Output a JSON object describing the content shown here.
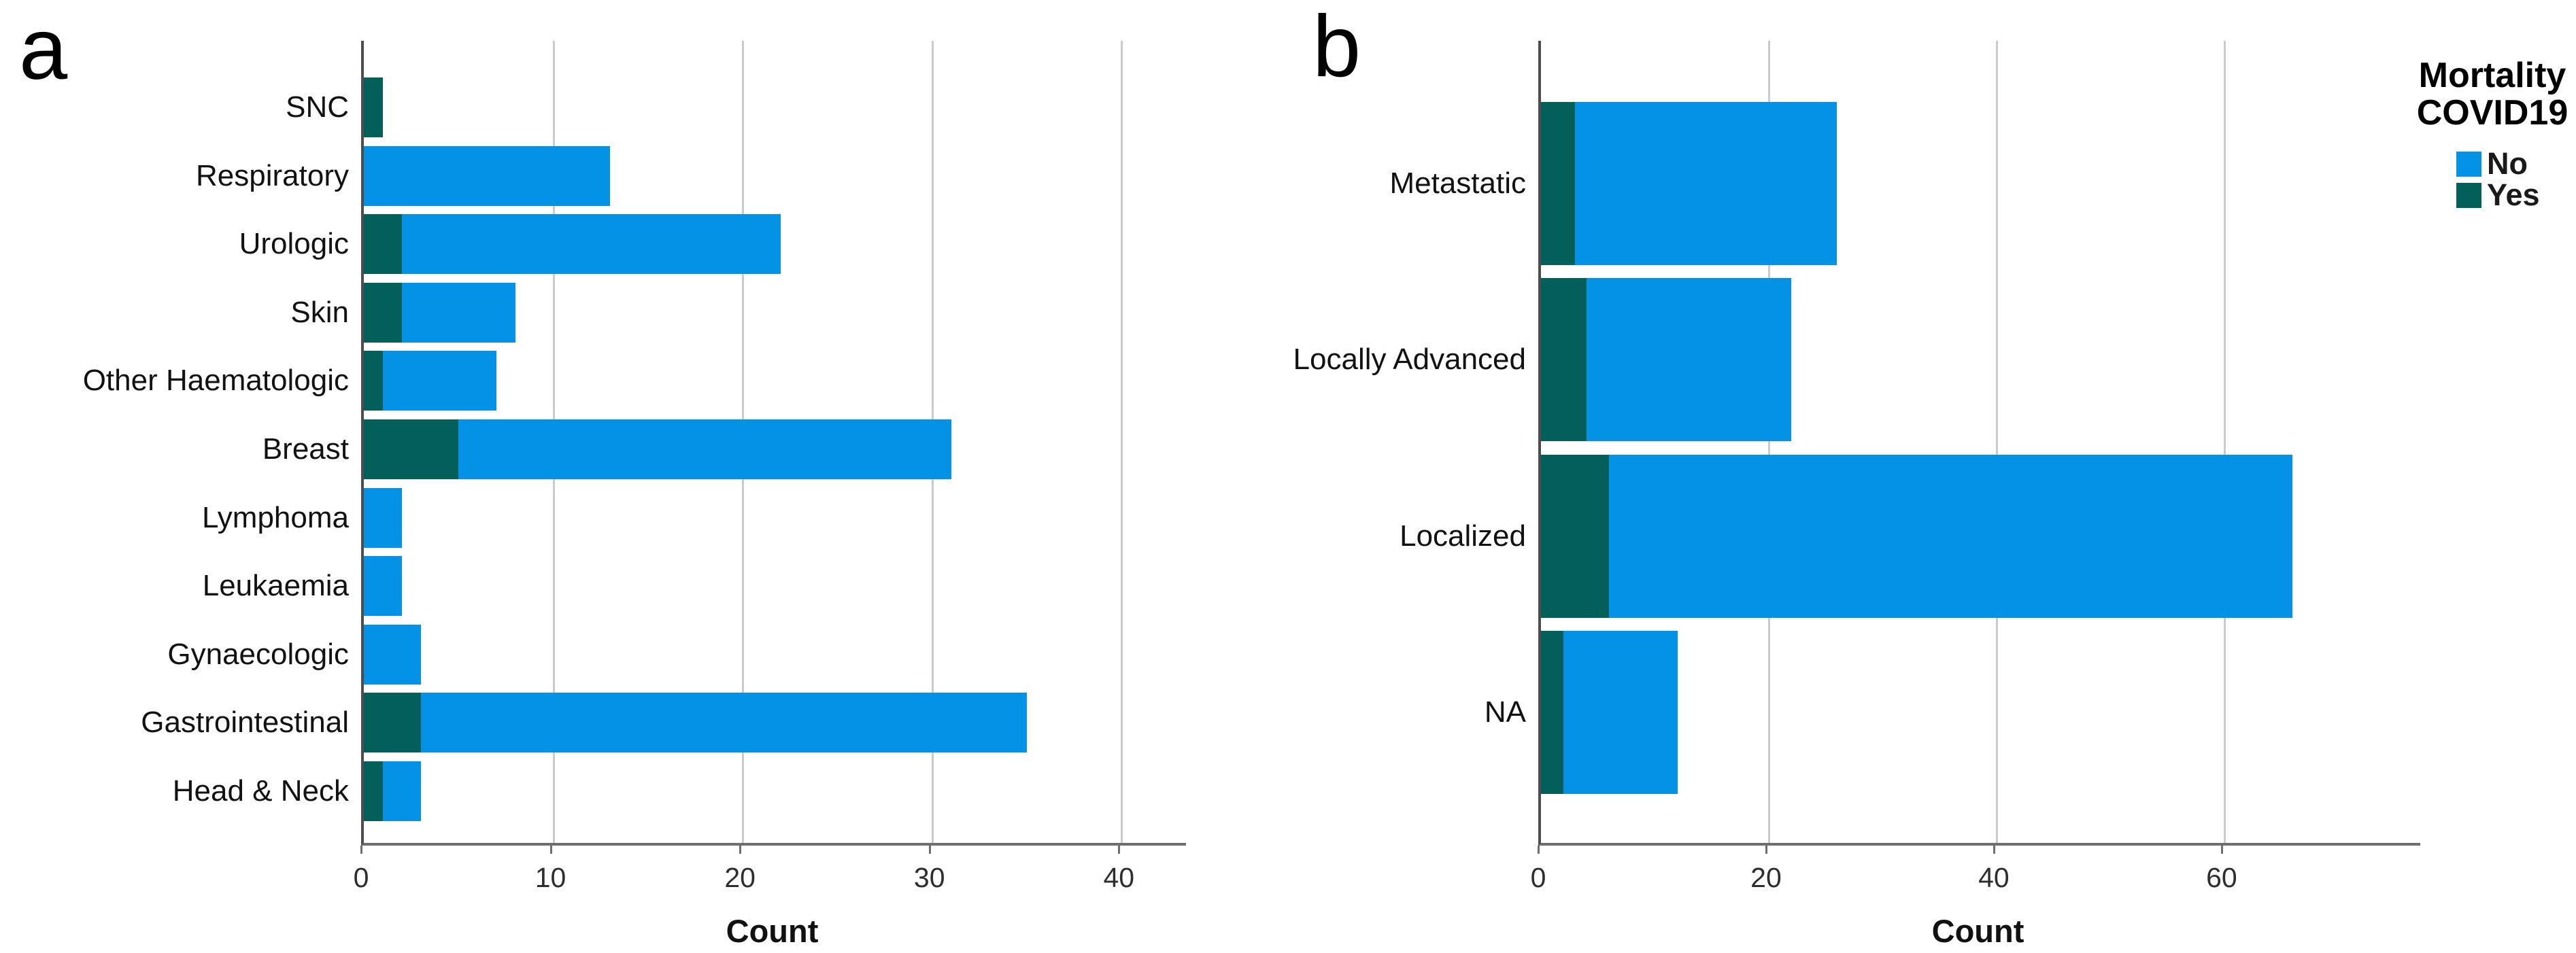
{
  "panels": [
    {
      "label": "a"
    },
    {
      "label": "b"
    }
  ],
  "legend": {
    "title_lines": [
      "Mortality",
      "COVID19"
    ],
    "items": [
      {
        "label": "No",
        "color": "#0392E6"
      },
      {
        "label": "Yes",
        "color": "#025F59"
      }
    ]
  },
  "colors": {
    "no_blue": "#0392E6",
    "yes_teal": "#025F59",
    "gridline": "#cbcbcb",
    "axis": "#6e6e6e",
    "text": "#121212"
  },
  "chart_data": [
    {
      "type": "bar",
      "orientation": "horizontal",
      "stacked": true,
      "panel": "a",
      "title": "",
      "categories": [
        "SNC",
        "Respiratory",
        "Urologic",
        "Skin",
        "Other Haematologic",
        "Breast",
        "Lymphoma",
        "Leukaemia",
        "Gynaecologic",
        "Gastrointestinal",
        "Head & Neck"
      ],
      "series": [
        {
          "name": "Yes",
          "color": "#025F59",
          "values": [
            1,
            0,
            2,
            2,
            1,
            5,
            0,
            0,
            0,
            3,
            1
          ]
        },
        {
          "name": "No",
          "color": "#0392E6",
          "values": [
            0,
            13,
            20,
            6,
            6,
            26,
            2,
            2,
            3,
            32,
            2
          ]
        }
      ],
      "totals": [
        1,
        13,
        22,
        8,
        7,
        31,
        2,
        2,
        3,
        35,
        3
      ],
      "xlabel": "Count",
      "ylabel": "",
      "xlim": [
        0,
        43.4
      ],
      "xticks": [
        0,
        10,
        20,
        30,
        40
      ],
      "grid": true,
      "legend_position": "none"
    },
    {
      "type": "bar",
      "orientation": "horizontal",
      "stacked": true,
      "panel": "b",
      "title": "",
      "categories": [
        "Metastatic",
        "Locally Advanced",
        "Localized",
        "NA"
      ],
      "series": [
        {
          "name": "Yes",
          "color": "#025F59",
          "values": [
            3,
            4,
            6,
            2
          ]
        },
        {
          "name": "No",
          "color": "#0392E6",
          "values": [
            23,
            18,
            60,
            10
          ]
        }
      ],
      "totals": [
        26,
        22,
        66,
        12
      ],
      "xlabel": "Count",
      "ylabel": "",
      "xlim": [
        0,
        77.2
      ],
      "xticks": [
        0,
        20,
        40,
        60
      ],
      "grid": true,
      "legend_position": "right",
      "legend_title": "Mortality COVID19"
    }
  ]
}
